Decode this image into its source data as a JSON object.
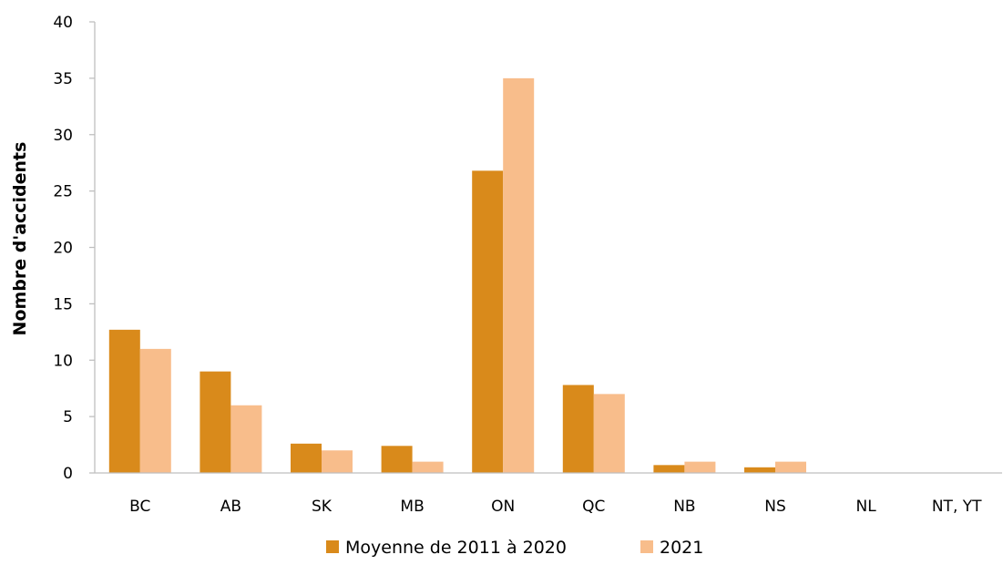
{
  "chart_data": {
    "type": "bar",
    "title": "",
    "xlabel": "",
    "ylabel": "Nombre d'accidents",
    "ylim": [
      0,
      40
    ],
    "yticks": [
      0,
      5,
      10,
      15,
      20,
      25,
      30,
      35,
      40
    ],
    "grid": false,
    "legend_position": "bottom",
    "categories": [
      "BC",
      "AB",
      "SK",
      "MB",
      "ON",
      "QC",
      "NB",
      "NS",
      "NL",
      "NT, YT"
    ],
    "series": [
      {
        "name": "Moyenne de 2011 à 2020",
        "color": "#d98a1b",
        "values": [
          12.7,
          9.0,
          2.6,
          2.4,
          26.8,
          7.8,
          0.7,
          0.5,
          0,
          0
        ]
      },
      {
        "name": "2021",
        "color": "#f8bd8b",
        "values": [
          11,
          6,
          2,
          1,
          35,
          7,
          1,
          1,
          0,
          0
        ]
      }
    ]
  }
}
